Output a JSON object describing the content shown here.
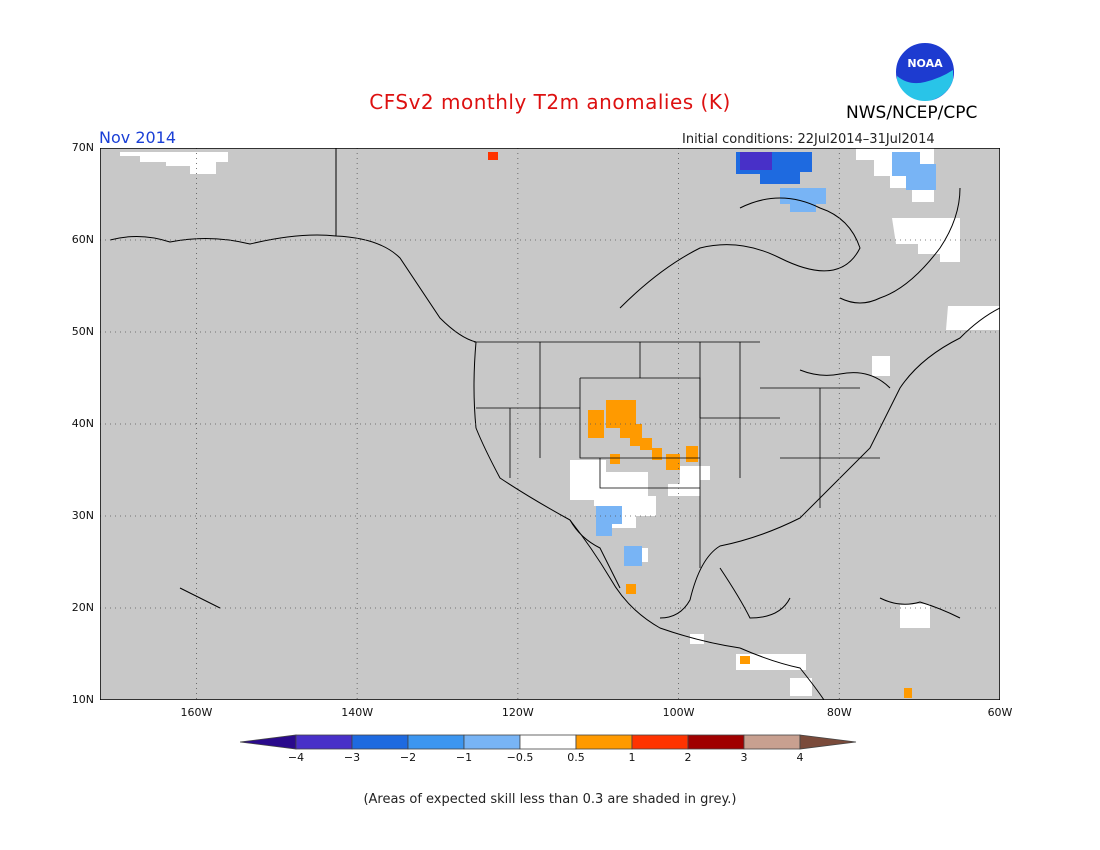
{
  "header": {
    "title": "CFSv2 monthly T2m anomalies (K)",
    "agency": "NWS/NCEP/CPC",
    "logo_text": "NOAA",
    "period": "Nov 2014",
    "initial_conditions": "Initial conditions: 22Jul2014–31Jul2014"
  },
  "map": {
    "projection": "lat-lon",
    "lon_range": [
      -172,
      -60
    ],
    "lat_range": [
      10,
      70
    ],
    "background_color": "#c8c8c8",
    "gridlines": "dotted",
    "lat_labels": [
      "70N",
      "60N",
      "50N",
      "40N",
      "30N",
      "20N",
      "10N"
    ],
    "lon_labels": [
      "160W",
      "140W",
      "120W",
      "100W",
      "80W",
      "60W"
    ],
    "regions": [
      {
        "name": "Colorado / New Mexico warm",
        "category": "0.5 to 1",
        "color": "#ff9a00"
      },
      {
        "name": "Hudson Bay cold",
        "category": "-3 to -2",
        "color": "#1e6ae0"
      },
      {
        "name": "Northern Mexico cool",
        "category": "-1 to -0.5",
        "color": "#78b4f5"
      },
      {
        "name": "Southwest US / Texas near normal",
        "category": "-0.5 to 0.5",
        "color": "#ffffff"
      }
    ]
  },
  "colorbar": {
    "bins": [
      {
        "color": "#2a0a8c"
      },
      {
        "color": "#4830c8"
      },
      {
        "color": "#1e6ae0"
      },
      {
        "color": "#3c96f0"
      },
      {
        "color": "#78b4f5"
      },
      {
        "color": "#ffffff"
      },
      {
        "color": "#ff9a00"
      },
      {
        "color": "#ff3300"
      },
      {
        "color": "#a00000"
      },
      {
        "color": "#c8a090"
      },
      {
        "color": "#7a4a3a"
      }
    ],
    "labels": [
      "−4",
      "−3",
      "−2",
      "−1",
      "−0.5",
      "0.5",
      "1",
      "2",
      "3",
      "4"
    ]
  },
  "footer": {
    "note": "(Areas of expected skill less than 0.3 are shaded in grey.)"
  }
}
